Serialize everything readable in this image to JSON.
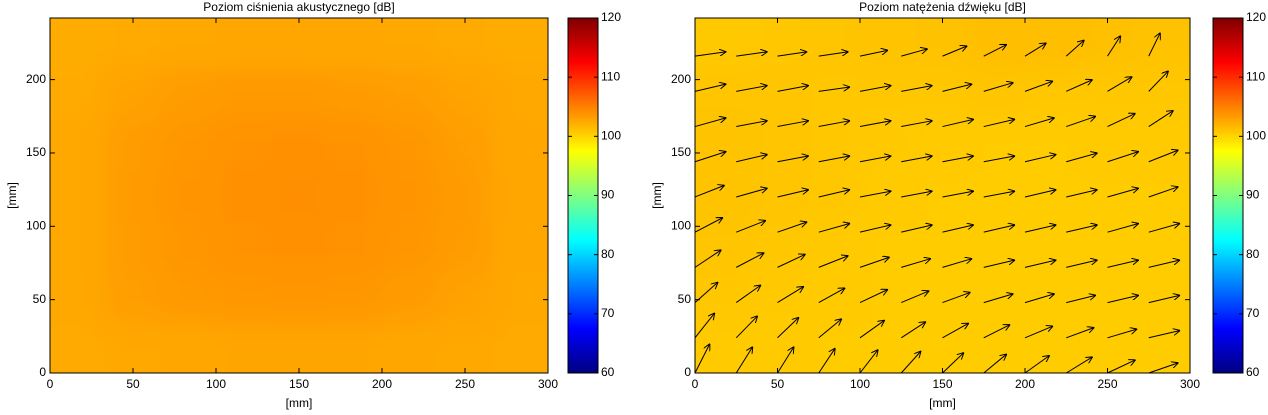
{
  "chart_data": [
    {
      "type": "heatmap",
      "title": "Poziom ciśnienia akustycznego [dB]",
      "xlabel": "[mm]",
      "ylabel": "[mm]",
      "xlim": [
        0,
        300
      ],
      "ylim": [
        0,
        242
      ],
      "xticks": [
        0,
        50,
        100,
        150,
        200,
        250,
        300
      ],
      "yticks": [
        0,
        50,
        100,
        150,
        200
      ],
      "x": [
        16.7,
        50,
        83.3,
        116.7,
        150,
        183.3,
        216.7,
        250,
        283.3
      ],
      "y": [
        17.3,
        51.9,
        86.4,
        121,
        155.6,
        190.1,
        224.7
      ],
      "z": [
        [
          102.5,
          102.6,
          102.7,
          102.8,
          102.8,
          102.8,
          102.7,
          102.6,
          102.5
        ],
        [
          102.6,
          103.2,
          103.5,
          103.6,
          103.7,
          103.6,
          103.4,
          103.0,
          102.6
        ],
        [
          102.6,
          103.3,
          103.7,
          103.9,
          104.0,
          103.9,
          103.7,
          103.3,
          102.7
        ],
        [
          102.6,
          103.4,
          103.8,
          104.0,
          104.1,
          104.0,
          103.8,
          103.4,
          102.7
        ],
        [
          102.6,
          103.3,
          103.7,
          103.9,
          104.0,
          103.9,
          103.7,
          103.2,
          102.7
        ],
        [
          102.5,
          103.0,
          103.3,
          103.5,
          103.5,
          103.4,
          103.2,
          102.9,
          102.6
        ],
        [
          102.4,
          102.5,
          102.6,
          102.7,
          102.7,
          102.7,
          102.6,
          102.5,
          102.4
        ]
      ],
      "colormap": "jet",
      "clim": [
        60,
        120
      ],
      "colorbar_ticks": [
        60,
        70,
        80,
        90,
        100,
        110,
        120
      ]
    },
    {
      "type": "heatmap",
      "title": "Poziom natężenia dźwięku [dB]",
      "xlabel": "[mm]",
      "ylabel": "[mm]",
      "xlim": [
        0,
        300
      ],
      "ylim": [
        0,
        242
      ],
      "xticks": [
        0,
        50,
        100,
        150,
        200,
        250,
        300
      ],
      "yticks": [
        0,
        50,
        100,
        150,
        200
      ],
      "x": [
        16.7,
        50,
        83.3,
        116.7,
        150,
        183.3,
        216.7,
        250,
        283.3
      ],
      "y": [
        17.3,
        51.9,
        86.4,
        121,
        155.6,
        190.1,
        224.7
      ],
      "z": [
        [
          100.6,
          100.6,
          100.5,
          100.5,
          100.5,
          100.5,
          100.5,
          100.5,
          100.5
        ],
        [
          100.8,
          100.7,
          100.6,
          100.5,
          100.5,
          100.5,
          100.5,
          100.5,
          100.5
        ],
        [
          100.9,
          100.8,
          100.7,
          100.5,
          100.5,
          100.5,
          100.5,
          100.5,
          100.5
        ],
        [
          101.0,
          100.9,
          100.8,
          100.6,
          100.5,
          100.5,
          100.5,
          100.5,
          100.5
        ],
        [
          101.0,
          100.9,
          100.8,
          100.7,
          100.6,
          100.5,
          100.5,
          100.6,
          100.6
        ],
        [
          100.9,
          100.9,
          100.8,
          100.8,
          100.8,
          100.9,
          100.8,
          100.8,
          100.8
        ],
        [
          100.7,
          100.8,
          100.9,
          101.0,
          101.1,
          101.3,
          101.3,
          101.2,
          101.1
        ]
      ],
      "colormap": "jet",
      "clim": [
        60,
        120
      ],
      "colorbar_ticks": [
        60,
        70,
        80,
        90,
        100,
        110,
        120
      ],
      "quiver": {
        "color": "#000000",
        "x": [
          0,
          25,
          50,
          75,
          100,
          125,
          150,
          175,
          200,
          225,
          250,
          275
        ],
        "y": [
          0,
          24,
          48,
          72,
          96,
          120,
          144,
          168,
          192,
          216
        ],
        "u": [
          [
            9,
            10,
            10,
            10,
            11,
            12,
            13,
            14,
            15,
            16,
            17,
            18
          ],
          [
            12,
            13,
            13,
            14,
            15,
            15,
            16,
            16,
            17,
            17,
            18,
            19
          ],
          [
            14,
            15,
            16,
            16,
            17,
            17,
            17,
            18,
            18,
            18,
            19,
            19
          ],
          [
            16,
            17,
            17,
            18,
            18,
            18,
            18,
            19,
            19,
            19,
            19,
            19
          ],
          [
            17,
            18,
            18,
            19,
            19,
            19,
            19,
            19,
            19,
            19,
            19,
            19
          ],
          [
            18,
            19,
            19,
            19,
            19,
            19,
            19,
            19,
            19,
            19,
            19,
            18
          ],
          [
            19,
            19,
            19,
            19,
            19,
            19,
            19,
            19,
            19,
            19,
            19,
            18
          ],
          [
            19,
            19,
            19,
            19,
            19,
            19,
            19,
            19,
            18,
            18,
            17,
            15
          ],
          [
            19,
            19,
            19,
            19,
            19,
            19,
            18,
            18,
            17,
            16,
            15,
            12
          ],
          [
            19,
            19,
            18,
            18,
            17,
            16,
            15,
            14,
            13,
            11,
            8,
            7
          ]
        ],
        "v": [
          [
            20,
            18,
            18,
            17,
            16,
            15,
            14,
            13,
            12,
            11,
            9,
            7
          ],
          [
            17,
            15,
            14,
            13,
            12,
            11,
            10,
            9,
            8,
            7,
            6,
            5
          ],
          [
            14,
            12,
            11,
            10,
            9,
            8,
            7,
            6,
            6,
            5,
            5,
            5
          ],
          [
            12,
            10,
            9,
            8,
            7,
            6,
            6,
            5,
            5,
            5,
            5,
            5
          ],
          [
            10,
            8,
            7,
            6,
            5,
            5,
            5,
            5,
            5,
            5,
            6,
            6
          ],
          [
            8,
            6,
            5,
            5,
            4,
            4,
            4,
            4,
            5,
            5,
            6,
            7
          ],
          [
            7,
            5,
            4,
            4,
            4,
            4,
            4,
            4,
            5,
            6,
            7,
            8
          ],
          [
            6,
            4,
            4,
            4,
            4,
            4,
            5,
            5,
            6,
            7,
            9,
            11
          ],
          [
            5,
            4,
            4,
            3,
            4,
            4,
            5,
            6,
            7,
            8,
            10,
            14
          ],
          [
            3,
            3,
            3,
            3,
            4,
            5,
            7,
            8,
            9,
            11,
            14,
            16
          ]
        ]
      }
    }
  ]
}
